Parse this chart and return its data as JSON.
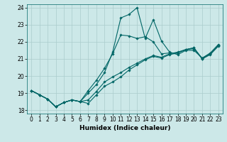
{
  "xlabel": "Humidex (Indice chaleur)",
  "ylabel": "",
  "xlim": [
    -0.5,
    23.5
  ],
  "ylim": [
    17.8,
    24.2
  ],
  "yticks": [
    18,
    19,
    20,
    21,
    22,
    23,
    24
  ],
  "xticks": [
    0,
    1,
    2,
    3,
    4,
    5,
    6,
    7,
    8,
    9,
    10,
    11,
    12,
    13,
    14,
    15,
    16,
    17,
    18,
    19,
    20,
    21,
    22,
    23
  ],
  "bg_color": "#cce8e8",
  "grid_color": "#aacccc",
  "line_color": "#006666",
  "lines": [
    {
      "x": [
        0,
        1,
        2,
        3,
        4,
        5,
        6,
        7,
        8,
        9,
        10,
        11,
        12,
        13,
        14,
        15,
        16,
        17,
        18,
        19,
        20,
        21,
        22,
        23
      ],
      "y": [
        19.15,
        18.9,
        18.65,
        18.2,
        18.45,
        18.6,
        18.5,
        18.4,
        18.9,
        19.4,
        19.65,
        19.95,
        20.35,
        20.65,
        20.95,
        21.15,
        21.05,
        21.25,
        21.35,
        21.55,
        21.65,
        21.0,
        21.25,
        21.75
      ]
    },
    {
      "x": [
        0,
        1,
        2,
        3,
        4,
        5,
        6,
        7,
        8,
        9,
        10,
        11,
        12,
        13,
        14,
        15,
        16,
        17,
        18,
        19,
        20,
        21,
        22,
        23
      ],
      "y": [
        19.15,
        18.9,
        18.65,
        18.2,
        18.45,
        18.6,
        18.5,
        19.0,
        19.5,
        20.2,
        21.4,
        23.4,
        23.6,
        24.0,
        22.2,
        23.3,
        22.05,
        21.4,
        21.25,
        21.5,
        21.5,
        21.05,
        21.35,
        21.85
      ]
    },
    {
      "x": [
        0,
        1,
        2,
        3,
        4,
        5,
        6,
        7,
        8,
        9,
        10,
        11,
        12,
        13,
        14,
        15,
        16,
        17,
        18,
        19,
        20,
        21,
        22,
        23
      ],
      "y": [
        19.15,
        18.9,
        18.65,
        18.2,
        18.45,
        18.6,
        18.5,
        18.6,
        19.1,
        19.65,
        19.95,
        20.2,
        20.5,
        20.75,
        21.0,
        21.2,
        21.1,
        21.3,
        21.4,
        21.55,
        21.65,
        21.0,
        21.3,
        21.8
      ]
    },
    {
      "x": [
        0,
        1,
        2,
        3,
        4,
        5,
        6,
        7,
        8,
        9,
        10,
        11,
        12,
        13,
        14,
        15,
        16,
        17,
        18,
        19,
        20,
        21,
        22,
        23
      ],
      "y": [
        19.15,
        18.9,
        18.65,
        18.2,
        18.45,
        18.6,
        18.5,
        19.15,
        19.75,
        20.45,
        21.3,
        22.4,
        22.35,
        22.2,
        22.3,
        22.0,
        21.3,
        21.35,
        21.35,
        21.55,
        21.6,
        21.05,
        21.3,
        21.8
      ]
    }
  ],
  "marker": "D",
  "markersize": 1.8,
  "linewidth": 0.8,
  "label_fontsize": 6.5,
  "tick_fontsize": 5.5
}
